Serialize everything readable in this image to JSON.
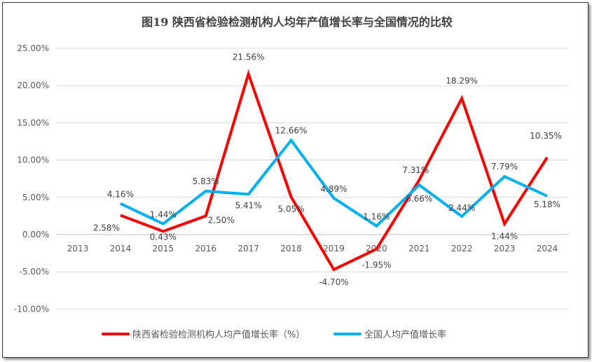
{
  "chart_data": {
    "type": "line",
    "title": "图19  陕西省检验检测机构人均年产值增长率与全国情况的比较",
    "categories": [
      "2013",
      "2014",
      "2015",
      "2016",
      "2017",
      "2018",
      "2019",
      "2020",
      "2021",
      "2022",
      "2023",
      "2024"
    ],
    "ylim": [
      -10,
      25
    ],
    "yticks": [
      "25.00%",
      "20.00%",
      "15.00%",
      "10.00%",
      "5.00%",
      "0.00%",
      "-5.00%",
      "-10.00%"
    ],
    "grid": true,
    "legend_position": "bottom",
    "series": [
      {
        "name": "陕西省检验检测机构人均产值增长率（%）",
        "color": "#FF0000",
        "values": [
          null,
          2.58,
          0.43,
          2.5,
          21.56,
          5.05,
          -4.7,
          -1.95,
          7.31,
          18.29,
          1.44,
          10.35
        ],
        "labels": [
          "",
          "2.58%",
          "0.43%",
          "2.50%",
          "21.56%",
          "5.05%",
          "-4.70%",
          "-1.95%",
          "7.31%",
          "18.29%",
          "1.44%",
          "10.35%"
        ]
      },
      {
        "name": "全国人均产值增长率",
        "color": "#00B0F0",
        "values": [
          null,
          4.16,
          1.44,
          5.83,
          5.41,
          12.66,
          4.89,
          1.16,
          6.66,
          2.44,
          7.79,
          5.18
        ],
        "labels": [
          "",
          "4.16%",
          "1.44%",
          "5.83%",
          "5.41%",
          "12.66%",
          "4.89%",
          "1.16%",
          "6.66%",
          "2.44%",
          "7.79%",
          "5.18%"
        ]
      }
    ]
  }
}
